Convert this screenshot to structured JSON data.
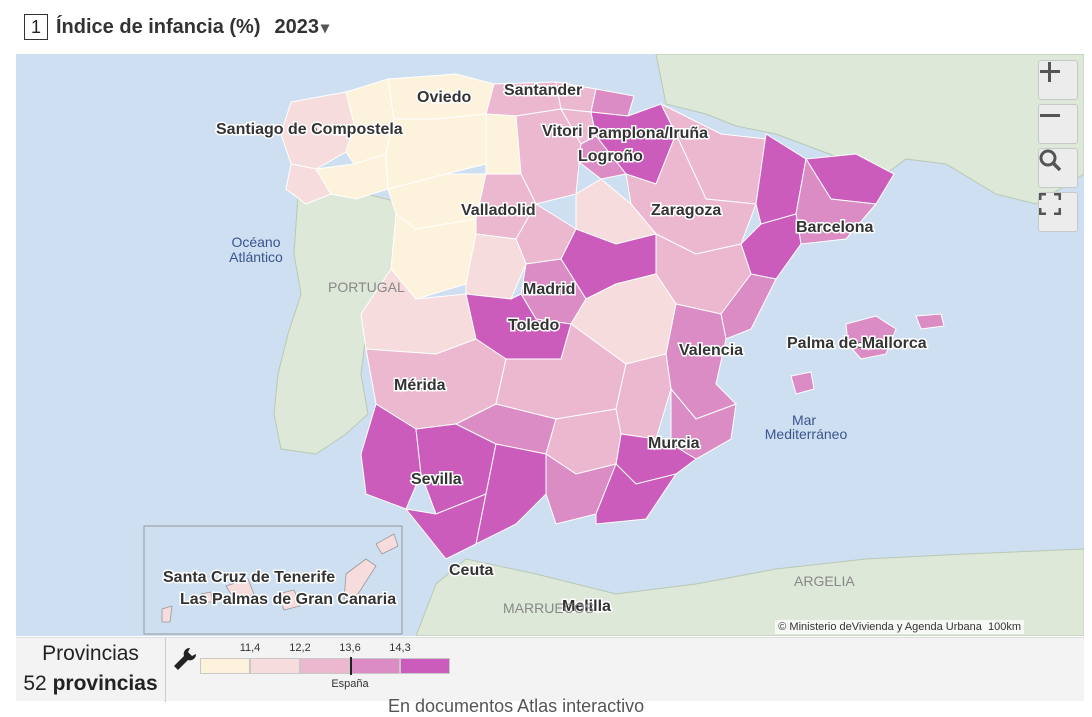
{
  "header": {
    "index": "1",
    "title": "Índice de infancia (%)",
    "year": "2023",
    "year_caret": "▾"
  },
  "map": {
    "cities": [
      {
        "name": "Santiago de Compostela"
      },
      {
        "name": "Oviedo"
      },
      {
        "name": "Santander"
      },
      {
        "name": "Vitoria-Gasteiz"
      },
      {
        "name": "Pamplona/Iruña"
      },
      {
        "name": "Logroño"
      },
      {
        "name": "Valladolid"
      },
      {
        "name": "Zaragoza"
      },
      {
        "name": "Barcelona"
      },
      {
        "name": "Madrid"
      },
      {
        "name": "Toledo"
      },
      {
        "name": "Valencia"
      },
      {
        "name": "Palma de Mallorca"
      },
      {
        "name": "Mérida"
      },
      {
        "name": "Murcia"
      },
      {
        "name": "Sevilla"
      },
      {
        "name": "Ceuta"
      },
      {
        "name": "Melilla"
      },
      {
        "name": "Santa Cruz de Tenerife"
      },
      {
        "name": "Las Palmas de Gran Canaria"
      }
    ],
    "labels": {
      "ocean": "Océano Atlántico",
      "ocean_l1": "Océano",
      "ocean_l2": "Atlántico",
      "portugal": "PORTUGAL",
      "sea_l1": "Mar",
      "sea_l2": "Mediterráneo",
      "argelia": "ARGELIA",
      "marruecos": "MARRUECOS"
    },
    "attribution": "© Ministerio deVivienda y Agenda Urbana",
    "scale": "100km",
    "controls": {
      "zoom_in": "zoom-in",
      "zoom_out": "zoom-out",
      "search": "search-icon",
      "fullscreen": "fullscreen-icon"
    }
  },
  "footer": {
    "level": "Provincias",
    "count": "52",
    "count_label": "provincias",
    "cut_text": "En documentos                Atlas interactivo"
  },
  "legend": {
    "ticks": [
      "11,4",
      "12,2",
      "13,6",
      "14,3"
    ],
    "reference_label": "España",
    "reference_value": 13.6,
    "colors": [
      "#fdf3dc",
      "#f6dcdc",
      "#ecb8d0",
      "#dc8cc4",
      "#cc5cbc"
    ]
  },
  "colors": {
    "water": "#cddff0",
    "land_foreign": "#dde8d8",
    "province_border": "#ffffff"
  }
}
